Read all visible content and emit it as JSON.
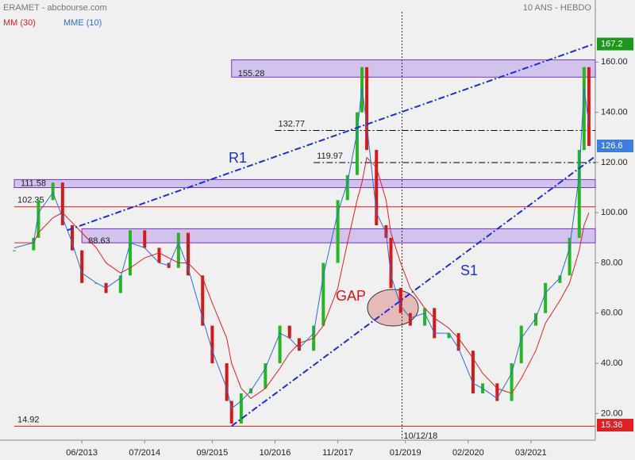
{
  "chart_data": {
    "type": "candlestick",
    "title": "ERAMET - abcbourse.com",
    "subtitle": "10 ANS - HEBDO",
    "xlim": [
      "04/2012",
      "04/2022"
    ],
    "xticks": [
      "06/2013",
      "07/2014",
      "09/2015",
      "10/2016",
      "11/2017",
      "01/2019",
      "02/2020",
      "03/2021"
    ],
    "ylim": [
      10,
      180
    ],
    "yticks": [
      {
        "value": 20,
        "label": "20.00"
      },
      {
        "value": 40,
        "label": "40.00"
      },
      {
        "value": 60,
        "label": "60.00"
      },
      {
        "value": 80,
        "label": "80.00"
      },
      {
        "value": 100,
        "label": "100.00"
      },
      {
        "value": 120,
        "label": "120.00"
      },
      {
        "value": 140,
        "label": "140.00"
      },
      {
        "value": 160,
        "label": "160.00"
      }
    ],
    "x": [
      "04/2012",
      "08/2012",
      "09/2012",
      "12/2012",
      "02/2013",
      "04/2013",
      "06/2013",
      "09/2013",
      "11/2013",
      "02/2014",
      "04/2014",
      "07/2014",
      "10/2014",
      "12/2014",
      "02/2015",
      "04/2015",
      "07/2015",
      "09/2015",
      "12/2015",
      "01/2016",
      "03/2016",
      "05/2016",
      "08/2016",
      "11/2016",
      "01/2017",
      "03/2017",
      "06/2017",
      "08/2017",
      "11/2017",
      "01/2018",
      "03/2018",
      "04/2018",
      "05/2018",
      "07/2018",
      "09/2018",
      "10/2018",
      "12/2018",
      "02/2019",
      "05/2019",
      "07/2019",
      "10/2019",
      "12/2019",
      "03/2020",
      "05/2020",
      "08/2020",
      "11/2020",
      "01/2021",
      "04/2021",
      "06/2021",
      "09/2021",
      "11/2021",
      "01/2022",
      "02/2022",
      "03/2022"
    ],
    "close": {
      "up_color": "#22b822",
      "down_color": "#d81818",
      "values": [
        85,
        90,
        105,
        112,
        95,
        85,
        72,
        72,
        68,
        75,
        93,
        86,
        80,
        78,
        92,
        75,
        55,
        40,
        25,
        16,
        28,
        30,
        40,
        55,
        50,
        45,
        55,
        80,
        105,
        115,
        140,
        158,
        125,
        95,
        90,
        70,
        60,
        55,
        62,
        50,
        52,
        45,
        28,
        32,
        25,
        40,
        55,
        60,
        72,
        75,
        90,
        125,
        158,
        126.6
      ]
    },
    "series": [
      {
        "name": "MM (30)",
        "color": "#e02020",
        "values": [
          88,
          88,
          92,
          98,
          100,
          96,
          92,
          86,
          80,
          76,
          78,
          82,
          84,
          82,
          80,
          80,
          74,
          64,
          50,
          40,
          30,
          26,
          30,
          38,
          44,
          48,
          50,
          55,
          70,
          88,
          105,
          112,
          122,
          118,
          105,
          92,
          80,
          70,
          62,
          58,
          54,
          50,
          42,
          36,
          30,
          28,
          34,
          45,
          56,
          65,
          72,
          85,
          95,
          100
        ]
      },
      {
        "name": "MME (10)",
        "color": "#2a6fd0",
        "values": [
          86,
          88,
          100,
          108,
          98,
          88,
          76,
          72,
          70,
          74,
          88,
          86,
          80,
          79,
          88,
          78,
          58,
          45,
          30,
          22,
          25,
          29,
          38,
          52,
          50,
          46,
          52,
          75,
          100,
          112,
          132,
          150,
          135,
          100,
          92,
          75,
          63,
          58,
          60,
          52,
          52,
          46,
          32,
          30,
          26,
          36,
          50,
          58,
          68,
          74,
          86,
          115,
          150,
          135
        ]
      }
    ],
    "levels": [
      {
        "value": 155.28,
        "band": [
          154,
          160.9
        ],
        "start": "01/2016",
        "color": "#7a2fd0"
      },
      {
        "value": 132.77,
        "start": "10/2016",
        "color": "#000000"
      },
      {
        "value": 119.97,
        "start": "06/2017",
        "color": "#000000"
      },
      {
        "value": 111.58,
        "band": [
          110,
          113.2
        ],
        "start": "04/2012",
        "color": "#7a2fd0"
      },
      {
        "value": 102.35,
        "start": "04/2012",
        "color": "#d81818"
      },
      {
        "value": 88.63,
        "band": [
          88,
          93.6
        ],
        "start": "06/2013",
        "color": "#7a2fd0"
      },
      {
        "value": 14.92,
        "start": "04/2012",
        "color": "#d81818"
      }
    ],
    "trendlines": [
      {
        "name": "R1",
        "from": [
          "03/2013",
          93
        ],
        "to": [
          "04/2022",
          167.2
        ],
        "color": "#1a2ee0"
      },
      {
        "name": "S1",
        "from": [
          "01/2016",
          15
        ],
        "to": [
          "04/2022",
          122
        ],
        "color": "#1a2ee0"
      }
    ],
    "marker_date": "10/12/18",
    "gap_label": "GAP",
    "price_tags": [
      {
        "value": 167.2,
        "color": "#1a9a1a"
      },
      {
        "value": 126.6,
        "color": "#3a7fe0"
      },
      {
        "value": 15.36,
        "color": "#e02020"
      }
    ]
  }
}
